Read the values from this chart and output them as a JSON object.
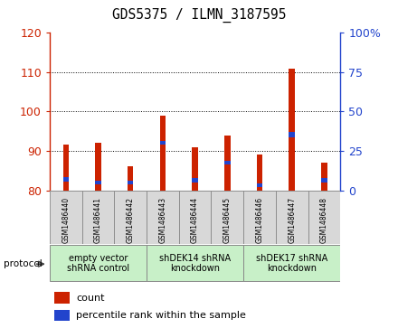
{
  "title": "GDS5375 / ILMN_3187595",
  "samples": [
    "GSM1486440",
    "GSM1486441",
    "GSM1486442",
    "GSM1486443",
    "GSM1486444",
    "GSM1486445",
    "GSM1486446",
    "GSM1486447",
    "GSM1486448"
  ],
  "count_values": [
    91.5,
    92.0,
    86.0,
    99.0,
    91.0,
    94.0,
    89.0,
    111.0,
    87.0
  ],
  "blue_bottom": [
    82.3,
    81.5,
    81.5,
    91.5,
    82.0,
    86.5,
    80.8,
    93.5,
    82.0
  ],
  "blue_top": [
    83.3,
    82.5,
    82.5,
    92.5,
    83.0,
    87.5,
    81.8,
    94.8,
    83.0
  ],
  "ymin": 80,
  "ymax": 120,
  "y2min": 0,
  "y2max": 100,
  "yticks": [
    80,
    90,
    100,
    110,
    120
  ],
  "y2ticks": [
    0,
    25,
    50,
    75,
    100
  ],
  "bar_color": "#cc2200",
  "blue_color": "#2244cc",
  "bg_color": "#ffffff",
  "groups": [
    {
      "label": "empty vector\nshRNA control",
      "start": 0,
      "end": 3
    },
    {
      "label": "shDEK14 shRNA\nknockdown",
      "start": 3,
      "end": 6
    },
    {
      "label": "shDEK17 shRNA\nknockdown",
      "start": 6,
      "end": 9
    }
  ],
  "protocol_label": "protocol",
  "legend_count": "count",
  "legend_pct": "percentile rank within the sample",
  "bar_width": 0.18
}
